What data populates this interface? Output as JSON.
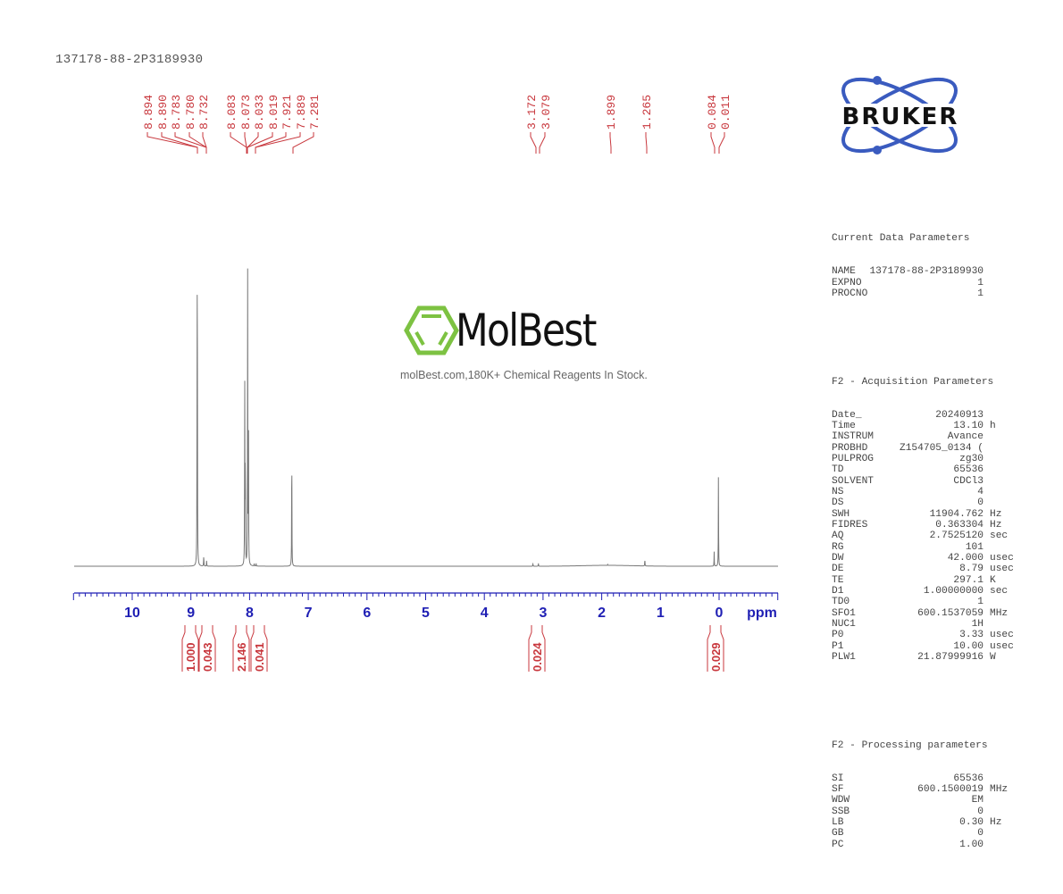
{
  "header": {
    "sample_name": "137178-88-2P3189930"
  },
  "watermark": {
    "brand": "MolBest",
    "tagline": "molBest.com,180K+ Chemical Reagents In Stock.",
    "brand_color": "#7dc242"
  },
  "logo": {
    "text": "BRUKER",
    "orbit_color": "#3a5bbf"
  },
  "parameters": {
    "current": {
      "title": "Current Data Parameters",
      "rows": [
        {
          "key": "NAME",
          "value": "137178-88-2P3189930",
          "unit": ""
        },
        {
          "key": "EXPNO",
          "value": "1",
          "unit": ""
        },
        {
          "key": "PROCNO",
          "value": "1",
          "unit": ""
        }
      ]
    },
    "acquisition": {
      "title": "F2 - Acquisition Parameters",
      "rows": [
        {
          "key": "Date_",
          "value": "20240913",
          "unit": ""
        },
        {
          "key": "Time",
          "value": "13.10",
          "unit": "h"
        },
        {
          "key": "INSTRUM",
          "value": "Avance",
          "unit": ""
        },
        {
          "key": "PROBHD",
          "value": "Z154705_0134 (",
          "unit": ""
        },
        {
          "key": "PULPROG",
          "value": "zg30",
          "unit": ""
        },
        {
          "key": "TD",
          "value": "65536",
          "unit": ""
        },
        {
          "key": "SOLVENT",
          "value": "CDCl3",
          "unit": ""
        },
        {
          "key": "NS",
          "value": "4",
          "unit": ""
        },
        {
          "key": "DS",
          "value": "0",
          "unit": ""
        },
        {
          "key": "SWH",
          "value": "11904.762",
          "unit": "Hz"
        },
        {
          "key": "FIDRES",
          "value": "0.363304",
          "unit": "Hz"
        },
        {
          "key": "AQ",
          "value": "2.7525120",
          "unit": "sec"
        },
        {
          "key": "RG",
          "value": "101",
          "unit": ""
        },
        {
          "key": "DW",
          "value": "42.000",
          "unit": "usec"
        },
        {
          "key": "DE",
          "value": "8.79",
          "unit": "usec"
        },
        {
          "key": "TE",
          "value": "297.1",
          "unit": "K"
        },
        {
          "key": "D1",
          "value": "1.00000000",
          "unit": "sec"
        },
        {
          "key": "TD0",
          "value": "1",
          "unit": ""
        },
        {
          "key": "SFO1",
          "value": "600.1537059",
          "unit": "MHz"
        },
        {
          "key": "NUC1",
          "value": "1H",
          "unit": ""
        },
        {
          "key": "P0",
          "value": "3.33",
          "unit": "usec"
        },
        {
          "key": "P1",
          "value": "10.00",
          "unit": "usec"
        },
        {
          "key": "PLW1",
          "value": "21.87999916",
          "unit": "W"
        }
      ]
    },
    "processing": {
      "title": "F2 - Processing parameters",
      "rows": [
        {
          "key": "SI",
          "value": "65536",
          "unit": ""
        },
        {
          "key": "SF",
          "value": "600.1500019",
          "unit": "MHz"
        },
        {
          "key": "WDW",
          "value": "EM",
          "unit": ""
        },
        {
          "key": "SSB",
          "value": "0",
          "unit": ""
        },
        {
          "key": "LB",
          "value": "0.30",
          "unit": "Hz"
        },
        {
          "key": "GB",
          "value": "0",
          "unit": ""
        },
        {
          "key": "PC",
          "value": "1.00",
          "unit": ""
        }
      ]
    }
  },
  "chart_data": {
    "type": "line",
    "title": "137178-88-2P3189930",
    "xlabel": "ppm",
    "ylabel": "",
    "xlim": [
      11,
      -1
    ],
    "x_reversed": true,
    "x_ticks": [
      10,
      9,
      8,
      7,
      6,
      5,
      4,
      3,
      2,
      1,
      0
    ],
    "x_tick_labels": [
      "10",
      "9",
      "8",
      "7",
      "6",
      "5",
      "4",
      "3",
      "2",
      "1",
      "0"
    ],
    "grid": false,
    "axis_color": "#1f1fb4",
    "label_color": "#c8373d",
    "spectrum_color": "#777777",
    "peak_labels_left": [
      "8.894",
      "8.890",
      "8.783",
      "8.780",
      "8.732",
      "8.083",
      "8.073",
      "8.033",
      "8.019",
      "7.921",
      "7.889",
      "7.281"
    ],
    "peak_labels_right": [
      "3.172",
      "3.079",
      "1.899",
      "1.265",
      "0.084",
      "0.011"
    ],
    "peaks": [
      {
        "ppm": 8.894,
        "height": 0.76
      },
      {
        "ppm": 8.89,
        "height": 0.7
      },
      {
        "ppm": 8.783,
        "height": 0.02
      },
      {
        "ppm": 8.78,
        "height": 0.02
      },
      {
        "ppm": 8.732,
        "height": 0.02
      },
      {
        "ppm": 8.083,
        "height": 0.66
      },
      {
        "ppm": 8.073,
        "height": 0.41
      },
      {
        "ppm": 8.033,
        "height": 1.0
      },
      {
        "ppm": 8.019,
        "height": 0.59
      },
      {
        "ppm": 7.921,
        "height": 0.01
      },
      {
        "ppm": 7.889,
        "height": 0.01
      },
      {
        "ppm": 7.281,
        "height": 0.45
      },
      {
        "ppm": 3.172,
        "height": 0.01
      },
      {
        "ppm": 3.079,
        "height": 0.01
      },
      {
        "ppm": 1.899,
        "height": 0.003
      },
      {
        "ppm": 1.265,
        "height": 0.025
      },
      {
        "ppm": 0.084,
        "height": 0.05
      },
      {
        "ppm": 0.011,
        "height": 0.31
      }
    ],
    "integrals": [
      {
        "ppm": 8.89,
        "value": "1.000"
      },
      {
        "ppm": 8.76,
        "value": "0.043"
      },
      {
        "ppm": 8.05,
        "value": "2.146"
      },
      {
        "ppm": 7.9,
        "value": "0.041"
      },
      {
        "ppm": 3.12,
        "value": "0.024"
      },
      {
        "ppm": 0.05,
        "value": "0.029"
      }
    ]
  }
}
